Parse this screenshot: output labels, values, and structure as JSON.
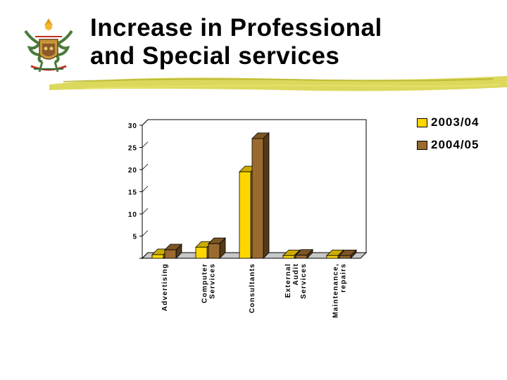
{
  "slide": {
    "title_line1": "Increase in Professional",
    "title_line2": "and Special services",
    "accent_color": "#d8d44a"
  },
  "chart_data": {
    "type": "bar",
    "categories": [
      "Advertising",
      "Computer Services",
      "Consultants",
      "External Audit Services",
      "Maintenance, repairs"
    ],
    "category_labels": [
      [
        "Advertising"
      ],
      [
        "Computer",
        "Services"
      ],
      [
        "Consultants"
      ],
      [
        "External",
        "Audit",
        "Services"
      ],
      [
        "Maintenance,",
        "repairs"
      ]
    ],
    "series": [
      {
        "name": "2003/04",
        "values": [
          0.8,
          2.5,
          19.5,
          0.6,
          0.6
        ],
        "color": "#ffd700"
      },
      {
        "name": "2004/05",
        "values": [
          1.9,
          3.3,
          27.0,
          0.7,
          0.6
        ],
        "color": "#9b6a2f"
      }
    ],
    "yticks": [
      0,
      5,
      10,
      15,
      20,
      25,
      30
    ],
    "ytick_labels": [
      "",
      "5",
      "10",
      "15",
      "20",
      "25",
      "30"
    ],
    "ylim": [
      0,
      30
    ],
    "title": "",
    "xlabel": "",
    "ylabel": "",
    "legend_position": "top-right",
    "grid": false
  }
}
